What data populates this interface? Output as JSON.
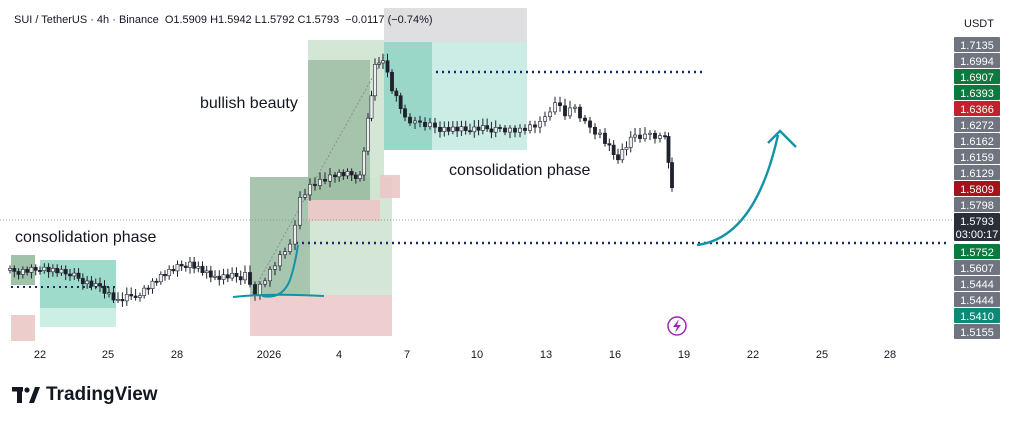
{
  "header": {
    "symbol": "SUI / TetherUS · 4h · Binance",
    "ohlc": "O1.5909  H1.5942  L1.5792  C1.5793",
    "change": "−0.0117 (−0.74%)"
  },
  "currency_label": "USDT",
  "brand": {
    "name": "TradingView"
  },
  "chart_data": {
    "type": "candlestick",
    "title": "SUI / TetherUS · 4h · Binance",
    "ylim": [
      1.5155,
      1.7135
    ],
    "x_ticks": [
      "22",
      "25",
      "28",
      "2026",
      "4",
      "7",
      "10",
      "13",
      "16",
      "19",
      "22",
      "25",
      "28"
    ],
    "price_labels": [
      {
        "value": "1.7135",
        "color": "#6f7480"
      },
      {
        "value": "1.6994",
        "color": "#6f7480"
      },
      {
        "value": "1.6907",
        "color": "#0b7a3e"
      },
      {
        "value": "1.6393",
        "color": "#0b7a3e"
      },
      {
        "value": "1.6366",
        "color": "#c2222b"
      },
      {
        "value": "1.6272",
        "color": "#6f7480"
      },
      {
        "value": "1.6162",
        "color": "#6f7480"
      },
      {
        "value": "1.6159",
        "color": "#6f7480"
      },
      {
        "value": "1.6129",
        "color": "#6f7480"
      },
      {
        "value": "1.5809",
        "color": "#a3131c"
      },
      {
        "value": "1.5798",
        "color": "#6f7480"
      },
      {
        "value": "1.5793",
        "color": "#2a2e39"
      },
      {
        "value": "1.5752",
        "color": "#0b7a3e"
      },
      {
        "value": "1.5607",
        "color": "#6f7480"
      },
      {
        "value": "1.5444",
        "color": "#6f7480"
      },
      {
        "value": "1.5444",
        "color": "#6f7480"
      },
      {
        "value": "1.5410",
        "color": "#0b8a78"
      },
      {
        "value": "1.5155",
        "color": "#6f7480"
      }
    ],
    "countdown": "03:00:17",
    "annotations": [
      "bullish beauty",
      "consolidation phase",
      "consolidation phase"
    ],
    "last_price": 1.5793,
    "ohlc_last": {
      "open": 1.5909,
      "high": 1.5942,
      "low": 1.5792,
      "close": 1.5793
    }
  }
}
